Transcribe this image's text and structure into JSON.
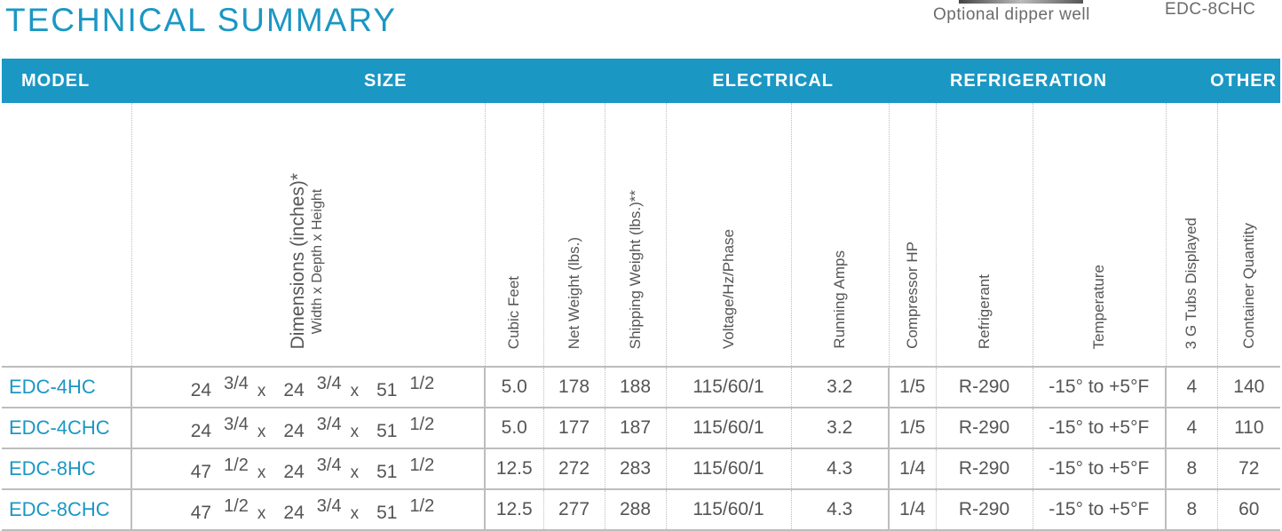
{
  "title": "TECHNICAL SUMMARY",
  "captions": {
    "left": "Optional dipper well",
    "right": "EDC-8CHC"
  },
  "groups": {
    "model": "MODEL",
    "size": "SIZE",
    "electrical": "ELECTRICAL",
    "refrigeration": "REFRIGERATION",
    "other": "OTHER"
  },
  "columns": {
    "dimensions": "Dimensions (inches)*",
    "dimensions_sub": "Width x Depth x Height",
    "cubic_feet": "Cubic Feet",
    "net_weight": "Net Weight (lbs.)",
    "shipping_weight": "Shipping Weight (lbs.)**",
    "voltage": "Voltage/Hz/Phase",
    "running_amps": "Running Amps",
    "compressor_hp": "Compressor HP",
    "refrigerant": "Refrigerant",
    "temperature": "Temperature",
    "tubs": "3 G Tubs Displayed",
    "container_qty": "Container Quantity"
  },
  "rows": [
    {
      "model": "EDC-4HC",
      "w": "24",
      "wf": "3/4",
      "x1": "x",
      "d": "24",
      "df": "3/4",
      "x2": "x",
      "h": "51",
      "hf": "1/2",
      "cubic_feet": "5.0",
      "net": "178",
      "ship": "188",
      "volt": "115/60/1",
      "amps": "3.2",
      "hp": "1/5",
      "refrig": "R-290",
      "temp": "-15° to +5°F",
      "tubs": "4",
      "qty": "140"
    },
    {
      "model": "EDC-4CHC",
      "w": "24",
      "wf": "3/4",
      "x1": "x",
      "d": "24",
      "df": "3/4",
      "x2": "x",
      "h": "51",
      "hf": "1/2",
      "cubic_feet": "5.0",
      "net": "177",
      "ship": "187",
      "volt": "115/60/1",
      "amps": "3.2",
      "hp": "1/5",
      "refrig": "R-290",
      "temp": "-15° to +5°F",
      "tubs": "4",
      "qty": "110"
    },
    {
      "model": "EDC-8HC",
      "w": "47",
      "wf": "1/2",
      "x1": "x",
      "d": "24",
      "df": "3/4",
      "x2": "x",
      "h": "51",
      "hf": "1/2",
      "cubic_feet": "12.5",
      "net": "272",
      "ship": "283",
      "volt": "115/60/1",
      "amps": "4.3",
      "hp": "1/4",
      "refrig": "R-290",
      "temp": "-15° to +5°F",
      "tubs": "8",
      "qty": "72"
    },
    {
      "model": "EDC-8CHC",
      "w": "47",
      "wf": "1/2",
      "x1": "x",
      "d": "24",
      "df": "3/4",
      "x2": "x",
      "h": "51",
      "hf": "1/2",
      "cubic_feet": "12.5",
      "net": "277",
      "ship": "288",
      "volt": "115/60/1",
      "amps": "4.3",
      "hp": "1/4",
      "refrig": "R-290",
      "temp": "-15° to +5°F",
      "tubs": "8",
      "qty": "60"
    }
  ]
}
